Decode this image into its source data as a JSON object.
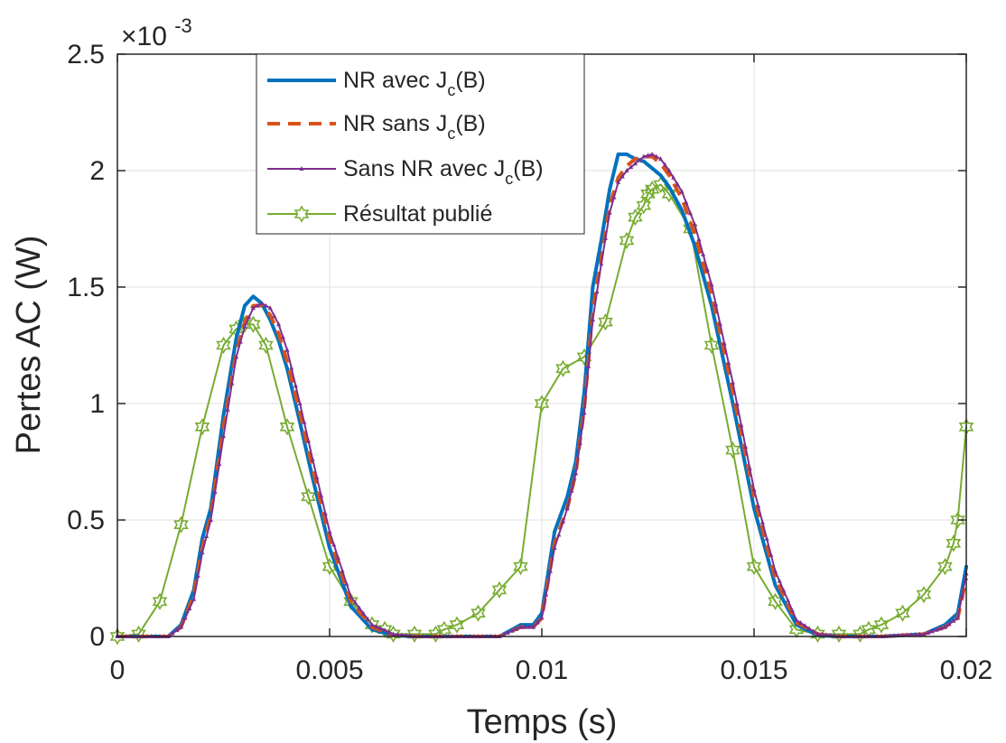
{
  "chart_data": {
    "type": "line",
    "xlabel": "Temps (s)",
    "ylabel": "Pertes AC (W)",
    "y_multiplier": "×10-3",
    "xlim": [
      0,
      0.02
    ],
    "ylim": [
      0,
      2.5
    ],
    "xticks": [
      0,
      0.005,
      0.01,
      0.015,
      0.02
    ],
    "xtick_labels": [
      "0",
      "0.005",
      "0.01",
      "0.015",
      "0.02"
    ],
    "yticks": [
      0,
      0.5,
      1,
      1.5,
      2,
      2.5
    ],
    "ytick_labels": [
      "0",
      "0.5",
      "1",
      "1.5",
      "2",
      "2.5"
    ],
    "grid": true,
    "legend_position": "top-left-inside",
    "series": [
      {
        "name": "NR avec J_c(B)",
        "color": "#0072bd",
        "style": "solid",
        "x": [
          0,
          0.0012,
          0.0015,
          0.0018,
          0.002,
          0.0022,
          0.0025,
          0.0028,
          0.003,
          0.0032,
          0.0034,
          0.0036,
          0.0038,
          0.004,
          0.0043,
          0.0046,
          0.005,
          0.0055,
          0.006,
          0.0065,
          0.007,
          0.008,
          0.009,
          0.0095,
          0.0098,
          0.01,
          0.0103,
          0.0106,
          0.0108,
          0.011,
          0.0112,
          0.0114,
          0.0116,
          0.0118,
          0.012,
          0.0122,
          0.0124,
          0.0126,
          0.0128,
          0.013,
          0.0133,
          0.0136,
          0.014,
          0.0145,
          0.015,
          0.0155,
          0.016,
          0.0165,
          0.017,
          0.018,
          0.019,
          0.0195,
          0.0198,
          0.02
        ],
        "y": [
          0,
          0,
          0.05,
          0.2,
          0.42,
          0.55,
          0.95,
          1.28,
          1.42,
          1.46,
          1.43,
          1.36,
          1.27,
          1.15,
          0.92,
          0.68,
          0.38,
          0.13,
          0.03,
          0.005,
          0,
          0,
          0,
          0.05,
          0.05,
          0.1,
          0.45,
          0.6,
          0.75,
          1.05,
          1.5,
          1.7,
          1.92,
          2.07,
          2.07,
          2.05,
          2.04,
          2.01,
          1.98,
          1.93,
          1.83,
          1.68,
          1.42,
          1.0,
          0.55,
          0.22,
          0.05,
          0.005,
          0,
          0,
          0.01,
          0.05,
          0.1,
          0.3
        ]
      },
      {
        "name": "NR sans J_c(B)",
        "color": "#d95319",
        "style": "dashed",
        "x": [
          0,
          0.0012,
          0.0015,
          0.0018,
          0.002,
          0.0022,
          0.0025,
          0.0028,
          0.003,
          0.0032,
          0.0034,
          0.0036,
          0.0038,
          0.004,
          0.0043,
          0.0046,
          0.005,
          0.0055,
          0.006,
          0.0065,
          0.007,
          0.008,
          0.009,
          0.0095,
          0.0098,
          0.01,
          0.0103,
          0.0106,
          0.0108,
          0.011,
          0.0112,
          0.0114,
          0.0116,
          0.0118,
          0.012,
          0.0122,
          0.0124,
          0.0126,
          0.0128,
          0.013,
          0.0133,
          0.0136,
          0.014,
          0.0145,
          0.015,
          0.0155,
          0.016,
          0.0165,
          0.017,
          0.018,
          0.019,
          0.0195,
          0.0198,
          0.02
        ],
        "y": [
          0,
          0,
          0.04,
          0.18,
          0.38,
          0.52,
          0.9,
          1.22,
          1.35,
          1.42,
          1.42,
          1.38,
          1.3,
          1.18,
          0.96,
          0.72,
          0.42,
          0.15,
          0.04,
          0.005,
          0,
          0,
          0,
          0.04,
          0.04,
          0.08,
          0.4,
          0.55,
          0.7,
          0.98,
          1.4,
          1.62,
          1.85,
          1.97,
          2.02,
          2.05,
          2.06,
          2.06,
          2.03,
          1.98,
          1.88,
          1.73,
          1.47,
          1.05,
          0.6,
          0.25,
          0.06,
          0.01,
          0,
          0,
          0.01,
          0.04,
          0.08,
          0.25
        ]
      },
      {
        "name": "Sans NR avec J_c(B)",
        "color": "#7e2f8e",
        "style": "solid-markers",
        "x": [
          0,
          0.0012,
          0.0015,
          0.0018,
          0.002,
          0.0022,
          0.0025,
          0.0028,
          0.003,
          0.0032,
          0.0034,
          0.0036,
          0.0038,
          0.004,
          0.0043,
          0.0046,
          0.005,
          0.0055,
          0.006,
          0.0065,
          0.007,
          0.008,
          0.009,
          0.0095,
          0.0098,
          0.01,
          0.0103,
          0.0106,
          0.0108,
          0.011,
          0.0112,
          0.0114,
          0.0116,
          0.0118,
          0.012,
          0.0122,
          0.0124,
          0.0126,
          0.0128,
          0.013,
          0.0133,
          0.0136,
          0.014,
          0.0145,
          0.015,
          0.0155,
          0.016,
          0.0165,
          0.017,
          0.018,
          0.019,
          0.0195,
          0.0198,
          0.02
        ],
        "y": [
          0,
          0,
          0.04,
          0.16,
          0.36,
          0.5,
          0.86,
          1.2,
          1.33,
          1.41,
          1.43,
          1.41,
          1.34,
          1.23,
          1.0,
          0.76,
          0.45,
          0.17,
          0.05,
          0.01,
          0,
          0,
          0,
          0.04,
          0.04,
          0.08,
          0.38,
          0.55,
          0.7,
          0.96,
          1.36,
          1.6,
          1.82,
          1.95,
          2.0,
          2.03,
          2.06,
          2.07,
          2.05,
          2.0,
          1.91,
          1.77,
          1.51,
          1.09,
          0.63,
          0.28,
          0.07,
          0.01,
          0,
          0,
          0.01,
          0.04,
          0.08,
          0.27
        ]
      },
      {
        "name": "Résultat publié",
        "color": "#77ac30",
        "style": "solid-hexagram",
        "x": [
          0,
          0.0005,
          0.001,
          0.0015,
          0.002,
          0.0025,
          0.0028,
          0.003,
          0.0032,
          0.0035,
          0.004,
          0.0045,
          0.005,
          0.0055,
          0.006,
          0.0063,
          0.0065,
          0.007,
          0.0075,
          0.0077,
          0.008,
          0.0085,
          0.009,
          0.0095,
          0.01,
          0.0105,
          0.011,
          0.0115,
          0.012,
          0.0122,
          0.0124,
          0.0125,
          0.0126,
          0.0128,
          0.013,
          0.0135,
          0.014,
          0.0145,
          0.015,
          0.0155,
          0.016,
          0.0165,
          0.017,
          0.0175,
          0.0177,
          0.018,
          0.0185,
          0.019,
          0.0195,
          0.0197,
          0.0198,
          0.02
        ],
        "y": [
          0,
          0.01,
          0.15,
          0.48,
          0.9,
          1.25,
          1.32,
          1.34,
          1.34,
          1.25,
          0.9,
          0.6,
          0.3,
          0.15,
          0.05,
          0.03,
          0.01,
          0.01,
          0.01,
          0.03,
          0.05,
          0.1,
          0.2,
          0.3,
          1.0,
          1.15,
          1.2,
          1.35,
          1.7,
          1.8,
          1.85,
          1.9,
          1.92,
          1.94,
          1.9,
          1.75,
          1.25,
          0.8,
          0.3,
          0.15,
          0.03,
          0.01,
          0.01,
          0.01,
          0.03,
          0.05,
          0.1,
          0.18,
          0.3,
          0.4,
          0.5,
          0.9
        ]
      }
    ]
  },
  "legend": [
    {
      "base": "NR avec J",
      "sub": "c",
      "tail": "(B)"
    },
    {
      "base": "NR sans J",
      "sub": "c",
      "tail": "(B)"
    },
    {
      "base": "Sans NR avec J",
      "sub": "c",
      "tail": "(B)"
    },
    {
      "base": "Résultat publié",
      "sub": "",
      "tail": ""
    }
  ],
  "exponent": {
    "base": "×10",
    "sup": "-3"
  }
}
